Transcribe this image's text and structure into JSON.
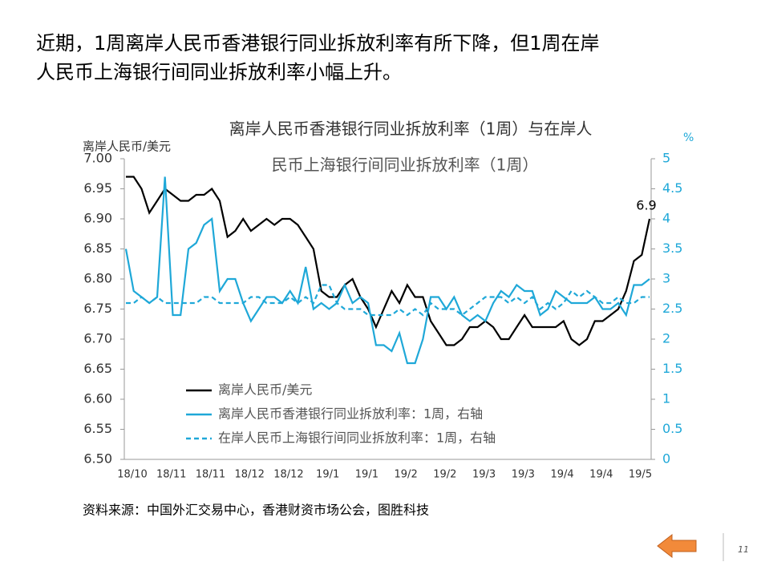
{
  "heading": [
    "近期，1周离岸人民币香港银行同业拆放利率有所下降，但1周在岸",
    "人民币上海银行间同业拆放利率小幅上升。"
  ],
  "chart_data": {
    "type": "line",
    "title": [
      "离岸人民币香港银行同业拆放利率（1周）与在岸人",
      "民币上海银行间同业拆放利率（1周）"
    ],
    "y_label": "离岸人民币/美元",
    "y2_label": "%",
    "categories": [
      "18/10",
      null,
      null,
      null,
      null,
      "18/11",
      null,
      null,
      null,
      null,
      "18/11",
      null,
      null,
      null,
      null,
      "18/12",
      null,
      null,
      null,
      null,
      "18/12",
      null,
      null,
      null,
      null,
      "19/1",
      null,
      null,
      null,
      null,
      "19/1",
      null,
      null,
      null,
      null,
      "19/2",
      null,
      null,
      null,
      null,
      "19/2",
      null,
      null,
      null,
      null,
      "19/3",
      null,
      null,
      null,
      null,
      "19/3",
      null,
      null,
      null,
      null,
      "19/4",
      null,
      null,
      null,
      null,
      "19/4",
      null,
      null,
      null,
      null,
      "19/5",
      null,
      null
    ],
    "series": [
      {
        "name": "离岸人民币/美元",
        "color": "#000000",
        "dash": false,
        "axis": "y",
        "values": [
          6.97,
          6.97,
          6.95,
          6.91,
          6.93,
          6.95,
          6.94,
          6.93,
          6.93,
          6.94,
          6.94,
          6.95,
          6.93,
          6.87,
          6.88,
          6.9,
          6.88,
          6.89,
          6.9,
          6.89,
          6.9,
          6.9,
          6.89,
          6.87,
          6.85,
          6.78,
          6.77,
          6.77,
          6.79,
          6.8,
          6.77,
          6.75,
          6.72,
          6.75,
          6.78,
          6.76,
          6.79,
          6.77,
          6.77,
          6.73,
          6.71,
          6.69,
          6.69,
          6.7,
          6.72,
          6.72,
          6.73,
          6.72,
          6.7,
          6.7,
          6.72,
          6.74,
          6.72,
          6.72,
          6.72,
          6.72,
          6.73,
          6.7,
          6.69,
          6.7,
          6.73,
          6.73,
          6.74,
          6.75,
          6.78,
          6.83,
          6.84,
          6.9
        ]
      },
      {
        "name": "离岸人民币香港银行同业拆放利率：1周，右轴",
        "color": "#1fa8d8",
        "dash": false,
        "axis": "y2",
        "values": [
          3.5,
          2.8,
          2.7,
          2.6,
          2.7,
          4.7,
          2.4,
          2.4,
          3.5,
          3.6,
          3.9,
          4.0,
          2.8,
          3.0,
          3.0,
          2.6,
          2.3,
          2.5,
          2.7,
          2.7,
          2.6,
          2.8,
          2.6,
          3.2,
          2.5,
          2.6,
          2.5,
          2.6,
          2.9,
          2.6,
          2.7,
          2.6,
          1.9,
          1.9,
          1.8,
          2.1,
          1.6,
          1.6,
          2.0,
          2.7,
          2.7,
          2.5,
          2.7,
          2.4,
          2.3,
          2.4,
          2.3,
          2.6,
          2.8,
          2.7,
          2.9,
          2.8,
          2.8,
          2.4,
          2.5,
          2.8,
          2.7,
          2.6,
          2.6,
          2.6,
          2.7,
          2.5,
          2.5,
          2.6,
          2.4,
          2.9,
          2.9,
          3.0
        ]
      },
      {
        "name": "在岸人民币上海银行间同业拆放利率：1周，右轴",
        "color": "#1fa8d8",
        "dash": true,
        "axis": "y2",
        "values": [
          2.6,
          2.6,
          2.7,
          2.6,
          2.7,
          2.6,
          2.6,
          2.6,
          2.6,
          2.6,
          2.7,
          2.7,
          2.6,
          2.6,
          2.6,
          2.6,
          2.7,
          2.7,
          2.6,
          2.6,
          2.6,
          2.7,
          2.6,
          2.7,
          2.6,
          2.9,
          2.9,
          2.6,
          2.5,
          2.5,
          2.5,
          2.4,
          2.4,
          2.4,
          2.4,
          2.5,
          2.4,
          2.5,
          2.4,
          2.6,
          2.5,
          2.5,
          2.5,
          2.4,
          2.5,
          2.6,
          2.7,
          2.7,
          2.7,
          2.6,
          2.7,
          2.6,
          2.7,
          2.5,
          2.6,
          2.5,
          2.6,
          2.8,
          2.7,
          2.8,
          2.7,
          2.6,
          2.6,
          2.7,
          2.6,
          2.6,
          2.7,
          2.7
        ]
      }
    ],
    "ylim": [
      6.5,
      7.0
    ],
    "yticks": [
      {
        "value": 6.5,
        "label": "6.50"
      },
      6.55,
      {
        "value": 6.6,
        "label": "6.60"
      },
      6.65,
      {
        "value": 6.7,
        "label": "6.70"
      },
      6.75,
      {
        "value": 6.8,
        "label": "6.80"
      },
      6.85,
      {
        "value": 6.9,
        "label": "6.90"
      },
      6.95,
      {
        "value": 7.0,
        "label": "7.00"
      }
    ],
    "y2lim": [
      0,
      5
    ],
    "y2ticks": [
      0,
      0.5,
      1,
      1.5,
      2,
      2.5,
      3,
      3.5,
      4,
      4.5,
      5
    ],
    "annotation": "6.9",
    "legend": "lower left"
  },
  "source": "资料来源：中国外汇交易中心，香港财资市场公会，图胜科技",
  "page_number": "11"
}
